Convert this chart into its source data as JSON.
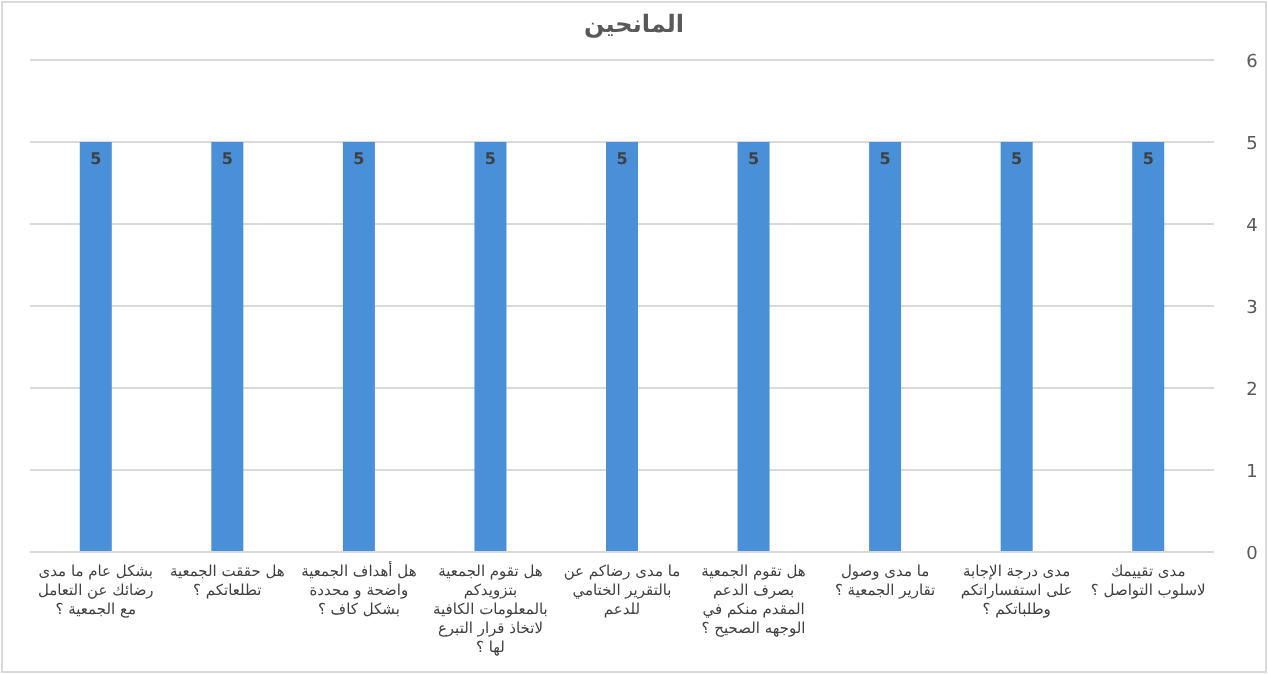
{
  "chart_data": {
    "type": "bar",
    "title": "المانحين",
    "categories": [
      "بشكل عام ما مدى رضائك عن التعامل مع الجمعية ؟",
      "هل حققت الجمعية تطلعاتكم ؟",
      "هل أهداف الجمعية واضحة و محددة بشكل كاف ؟",
      "هل تقوم الجمعية بتزويدكم بالمعلومات الكافية لاتخاذ قرار التبرع لها ؟",
      "ما مدى رضاكم عن بالتقرير الختامي للدعم",
      "هل تقوم الجمعية بصرف الدعم المقدم منكم في الوجهه الصحيح ؟",
      "ما مدى وصول تقارير الجمعية ؟",
      "مدى درجة الإجابة على استفساراتكم وطلباتكم ؟",
      "مدى تقييمك لاسلوب التواصل ؟"
    ],
    "values": [
      5,
      5,
      5,
      5,
      5,
      5,
      5,
      5,
      5
    ],
    "color": "#4a90d9",
    "ylim": [
      0,
      6
    ],
    "yticks": [
      0,
      1,
      2,
      3,
      4,
      5,
      6
    ],
    "grid": "y",
    "data_labels": true
  }
}
